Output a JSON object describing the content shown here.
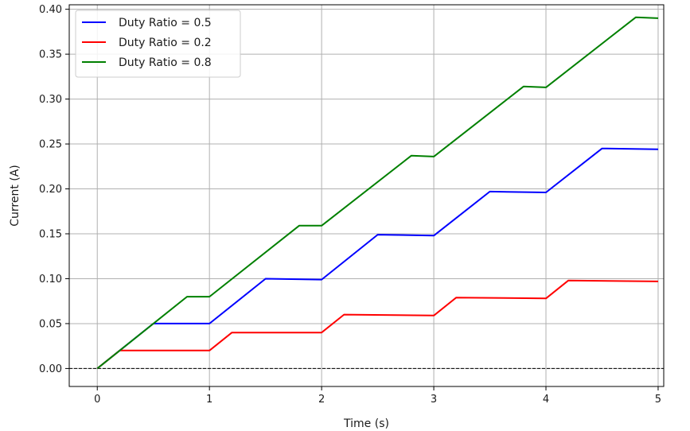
{
  "chart_data": {
    "type": "line",
    "title": "",
    "xlabel": "Time (s)",
    "ylabel": "Current (A)",
    "xlim": [
      -0.25,
      5.05
    ],
    "ylim": [
      -0.02,
      0.405
    ],
    "xticks": [
      0,
      1,
      2,
      3,
      4,
      5
    ],
    "yticks": [
      0.0,
      0.05,
      0.1,
      0.15,
      0.2,
      0.25,
      0.3,
      0.35,
      0.4
    ],
    "xtick_labels": [
      "0",
      "1",
      "2",
      "3",
      "4",
      "5"
    ],
    "ytick_labels": [
      "0.00",
      "0.05",
      "0.10",
      "0.15",
      "0.20",
      "0.25",
      "0.30",
      "0.35",
      "0.40"
    ],
    "grid": true,
    "zero_line": {
      "y": 0,
      "style": "dashed",
      "color": "#000000"
    },
    "legend": {
      "position": "top-left"
    },
    "series": [
      {
        "name": "Duty Ratio = 0.5",
        "color": "#0000ff",
        "x": [
          0,
          0.5,
          1.0,
          1.5,
          2.0,
          2.5,
          3.0,
          3.5,
          4.0,
          4.5,
          5.0
        ],
        "y": [
          0,
          0.05,
          0.05,
          0.1,
          0.099,
          0.149,
          0.148,
          0.197,
          0.196,
          0.245,
          0.244
        ]
      },
      {
        "name": "Duty Ratio = 0.2",
        "color": "#ff0000",
        "x": [
          0,
          0.2,
          1.0,
          1.2,
          2.0,
          2.2,
          3.0,
          3.2,
          4.0,
          4.2,
          5.0
        ],
        "y": [
          0,
          0.02,
          0.02,
          0.04,
          0.04,
          0.06,
          0.059,
          0.079,
          0.078,
          0.098,
          0.097
        ]
      },
      {
        "name": "Duty Ratio = 0.8",
        "color": "#008000",
        "x": [
          0,
          0.8,
          1.0,
          1.8,
          2.0,
          2.8,
          3.0,
          3.8,
          4.0,
          4.8,
          5.0
        ],
        "y": [
          0,
          0.08,
          0.08,
          0.159,
          0.159,
          0.237,
          0.236,
          0.314,
          0.313,
          0.391,
          0.39
        ]
      }
    ]
  }
}
